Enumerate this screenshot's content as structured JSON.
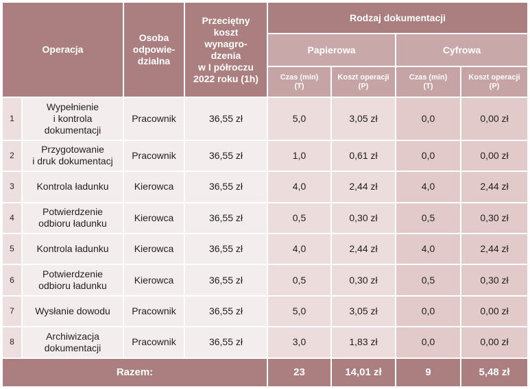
{
  "table": {
    "headers": {
      "operation": "Operacja",
      "person_lines": [
        "Osoba",
        "odpowie-",
        "dzialna"
      ],
      "wage_lines": [
        "Przeciętny",
        "koszt",
        "wynagro-",
        "dzenia",
        "w I półroczu",
        "2022 roku (1h)"
      ],
      "doc_type": "Rodzaj dokumentacji",
      "paper": "Papierowa",
      "digital": "Cyfrowa",
      "time_main": "Czas (min)",
      "time_sub": "(T)",
      "cost_main": "Koszt operacji",
      "cost_sub": "(P)"
    },
    "rows": [
      {
        "no": "1",
        "operation_lines": [
          "Wypełnienie",
          "i kontrola",
          "dokumentacji"
        ],
        "person": "Pracownik",
        "wage": "36,55 zł",
        "paper_time": "5,0",
        "paper_cost": "3,05 zł",
        "digital_time": "0,0",
        "digital_cost": "0,00 zł"
      },
      {
        "no": "2",
        "operation_lines": [
          "Przygotowanie",
          "i druk dokumentacj"
        ],
        "person": "Pracownik",
        "wage": "36,55 zł",
        "paper_time": "1,0",
        "paper_cost": "0,61 zł",
        "digital_time": "0,0",
        "digital_cost": "0,00 zł"
      },
      {
        "no": "3",
        "operation_lines": [
          "Kontrola ładunku"
        ],
        "person": "Kierowca",
        "wage": "36,55 zł",
        "paper_time": "4,0",
        "paper_cost": "2,44 zł",
        "digital_time": "4,0",
        "digital_cost": "2,44 zł"
      },
      {
        "no": "4",
        "operation_lines": [
          "Potwierdzenie",
          "odbioru ładunku"
        ],
        "person": "Kierowca",
        "wage": "36,55 zł",
        "paper_time": "0,5",
        "paper_cost": "0,30 zł",
        "digital_time": "0,5",
        "digital_cost": "0,30 zł"
      },
      {
        "no": "5",
        "operation_lines": [
          "Kontrola ładunku"
        ],
        "person": "Kierowca",
        "wage": "36,55 zł",
        "paper_time": "4,0",
        "paper_cost": "2,44 zł",
        "digital_time": "4,0",
        "digital_cost": "2,44 zł"
      },
      {
        "no": "6",
        "operation_lines": [
          "Potwierdzenie",
          "odbioru ładunku"
        ],
        "person": "Kierowca",
        "wage": "36,55 zł",
        "paper_time": "0,5",
        "paper_cost": "0,30 zł",
        "digital_time": "0,5",
        "digital_cost": "0,30 zł"
      },
      {
        "no": "7",
        "operation_lines": [
          "Wysłanie dowodu"
        ],
        "person": "Pracownik",
        "wage": "36,55 zł",
        "paper_time": "5,0",
        "paper_cost": "3,05 zł",
        "digital_time": "0,0",
        "digital_cost": "0,00 zł"
      },
      {
        "no": "8",
        "operation_lines": [
          "Archiwizacja",
          "dokumentacji"
        ],
        "person": "Pracownik",
        "wage": "36,55 zł",
        "paper_time": "3,0",
        "paper_cost": "1,83 zł",
        "digital_time": "0,0",
        "digital_cost": "0,00 zł"
      }
    ],
    "total": {
      "label": "Razem:",
      "paper_time": "23",
      "paper_cost": "14,01 zł",
      "digital_time": "9",
      "digital_cost": "5,48 zł"
    }
  }
}
